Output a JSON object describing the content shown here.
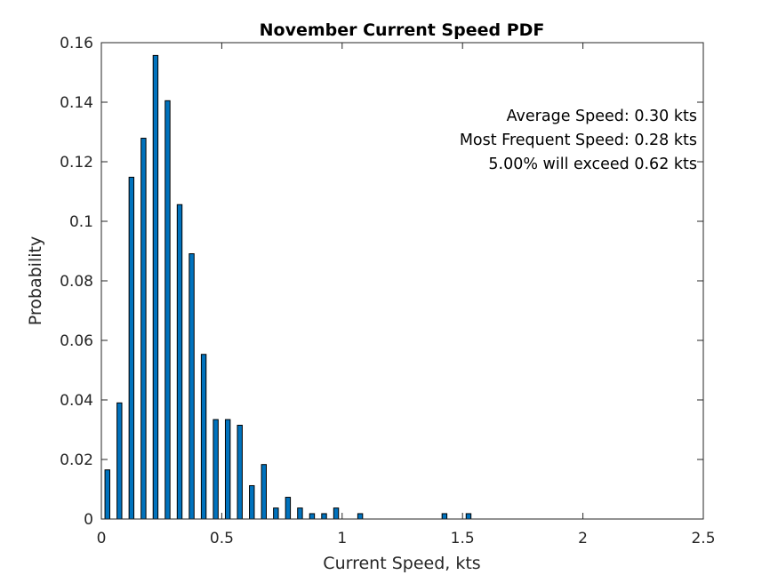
{
  "chart_data": {
    "type": "bar",
    "title": "November Current Speed PDF",
    "xlabel": "Current Speed, kts",
    "ylabel": "Probability",
    "xlim": [
      0,
      2.5
    ],
    "ylim": [
      0,
      0.16
    ],
    "xticks": [
      "0",
      "0.5",
      "1",
      "1.5",
      "2",
      "2.5"
    ],
    "yticks": [
      "0",
      "0.02",
      "0.04",
      "0.06",
      "0.08",
      "0.1",
      "0.12",
      "0.14",
      "0.16"
    ],
    "grid": false,
    "bar_color": "#0072BD",
    "bar_edge_color": "#000000",
    "annotations": [
      "Average Speed: 0.30 kts",
      "Most Frequent Speed: 0.28 kts",
      "5.00% will exceed 0.62 kts"
    ],
    "x": [
      0.025,
      0.075,
      0.125,
      0.175,
      0.225,
      0.275,
      0.325,
      0.375,
      0.425,
      0.475,
      0.525,
      0.575,
      0.625,
      0.675,
      0.725,
      0.775,
      0.825,
      0.875,
      0.925,
      0.975,
      1.025,
      1.075,
      1.125,
      1.175,
      1.225,
      1.275,
      1.325,
      1.375,
      1.425,
      1.475,
      1.525,
      1.575,
      1.625,
      1.675,
      1.725,
      1.775,
      1.825,
      1.875,
      1.925,
      1.975,
      2.025,
      2.075,
      2.125,
      2.175,
      2.225,
      2.275,
      2.325,
      2.375,
      2.425,
      2.475
    ],
    "values": [
      0.0165,
      0.039,
      0.1148,
      0.1279,
      0.1557,
      0.1405,
      0.1056,
      0.0891,
      0.0553,
      0.0334,
      0.0334,
      0.0315,
      0.0112,
      0.0183,
      0.0037,
      0.0073,
      0.0037,
      0.0018,
      0.0018,
      0.0037,
      0.0,
      0.0018,
      0.0,
      0.0,
      0.0,
      0.0,
      0.0,
      0.0,
      0.0018,
      0.0,
      0.0018,
      0.0,
      0.0,
      0.0,
      0.0,
      0.0,
      0.0,
      0.0,
      0.0,
      0.0,
      0.0,
      0.0,
      0.0,
      0.0,
      0.0,
      0.0,
      0.0,
      0.0,
      0.0,
      0.0
    ]
  }
}
